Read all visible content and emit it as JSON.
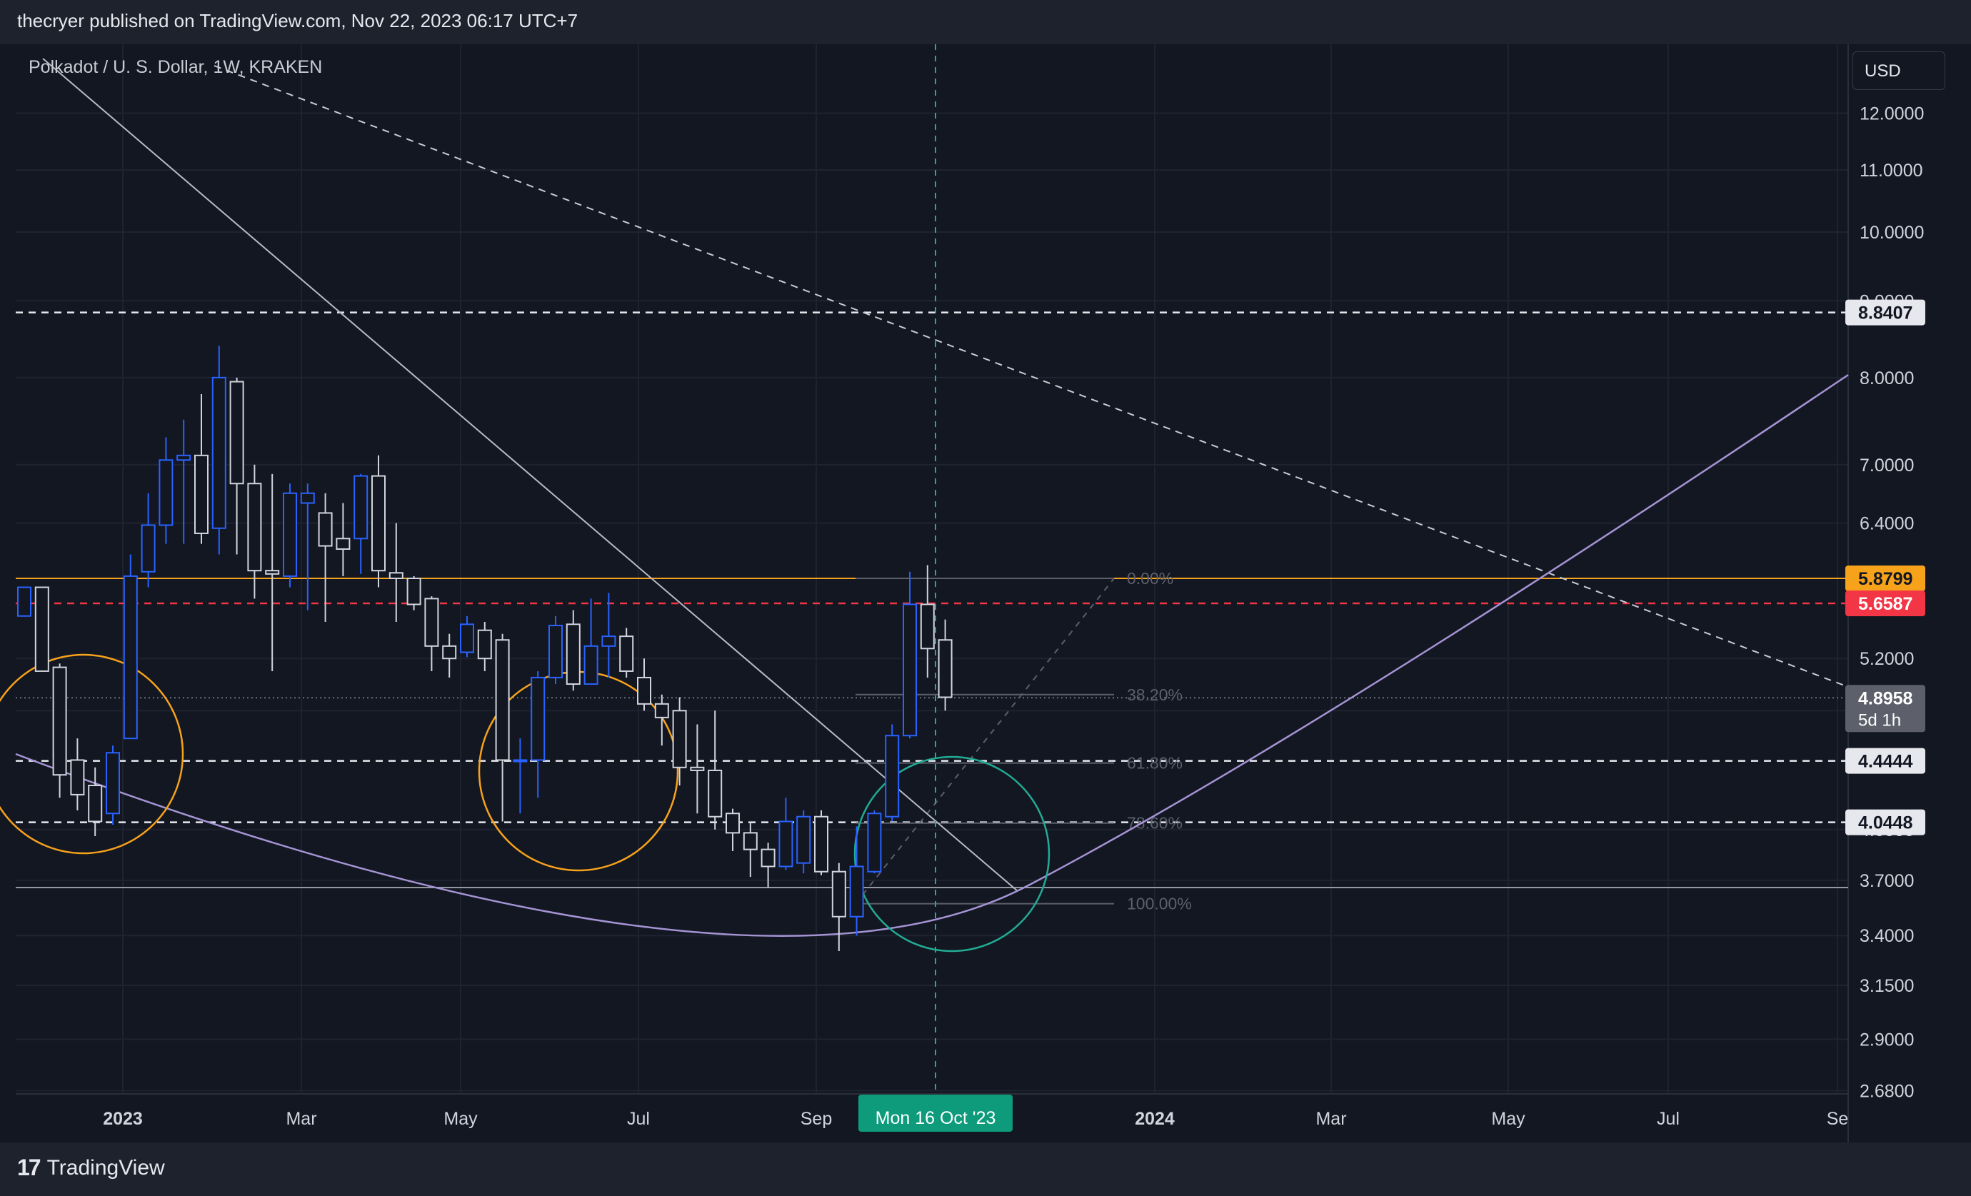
{
  "header": {
    "text": "thecryer published on TradingView.com, Nov 22, 2023 06:17 UTC+7"
  },
  "symbol": {
    "title": "Polkadot / U. S. Dollar, 1W, KRAKEN"
  },
  "currency": "USD",
  "footer": {
    "brand": "TradingView",
    "logo": "17"
  },
  "colors": {
    "background": "#131722",
    "up": "#2962ff",
    "down": "#d1d4dc",
    "orange": "#f7a21b",
    "red": "#f23645",
    "teal": "#22ab94",
    "purple": "#a594d4"
  },
  "chart_data": {
    "type": "candlestick",
    "scale": "log",
    "ylim": [
      2.68,
      12.9
    ],
    "y_ticks": [
      "12.0000",
      "11.0000",
      "10.0000",
      "9.0000",
      "8.0000",
      "7.0000",
      "6.4000",
      "5.2000",
      "4.8000",
      "4.0000",
      "3.7000",
      "3.4000",
      "3.1500",
      "2.9000",
      "2.6800"
    ],
    "x_ticks": [
      "2023",
      "Mar",
      "May",
      "Jul",
      "Sep",
      "2024",
      "Mar",
      "May",
      "Jul",
      "Se"
    ],
    "crosshair_date": "Mon 16 Oct '23",
    "price_labels": [
      {
        "value": "8.8407",
        "kind": "level"
      },
      {
        "value": "5.8799",
        "kind": "orange"
      },
      {
        "value": "5.6587",
        "kind": "red"
      },
      {
        "value": "4.8958",
        "kind": "last",
        "countdown": "5d 1h"
      },
      {
        "value": "4.4444",
        "kind": "level"
      },
      {
        "value": "4.0448",
        "kind": "level"
      }
    ],
    "fib_levels": [
      {
        "label": "0.00%",
        "price": 5.88
      },
      {
        "label": "38.20%",
        "price": 4.92
      },
      {
        "label": "61.80%",
        "price": 4.43
      },
      {
        "label": "78.60%",
        "price": 4.04
      },
      {
        "label": "100.00%",
        "price": 3.57
      }
    ],
    "candles": [
      [
        5.55,
        5.8,
        5.7,
        5.55
      ],
      [
        5.8,
        5.1,
        5.8,
        5.2
      ],
      [
        5.13,
        4.35,
        5.16,
        4.2
      ],
      [
        4.45,
        4.22,
        4.6,
        4.12
      ],
      [
        4.28,
        4.05,
        4.4,
        3.96
      ],
      [
        4.1,
        4.5,
        4.55,
        4.03
      ],
      [
        4.6,
        5.9,
        6.1,
        4.6
      ],
      [
        5.94,
        6.38,
        6.7,
        5.8
      ],
      [
        6.38,
        7.05,
        7.3,
        6.2
      ],
      [
        7.05,
        7.1,
        7.5,
        6.2
      ],
      [
        7.1,
        6.3,
        7.8,
        6.2
      ],
      [
        6.35,
        8.0,
        8.4,
        6.1
      ],
      [
        7.95,
        6.8,
        8.0,
        6.1
      ],
      [
        6.8,
        5.95,
        7.0,
        5.7
      ],
      [
        5.95,
        5.92,
        6.9,
        5.1
      ],
      [
        5.9,
        6.7,
        6.8,
        5.8
      ],
      [
        6.6,
        6.7,
        6.8,
        5.6
      ],
      [
        6.5,
        6.18,
        6.7,
        5.5
      ],
      [
        6.25,
        6.15,
        6.6,
        5.9
      ],
      [
        6.25,
        6.88,
        6.9,
        5.92
      ],
      [
        6.88,
        5.95,
        7.1,
        5.8
      ],
      [
        5.93,
        5.88,
        6.4,
        5.5
      ],
      [
        5.88,
        5.65,
        5.9,
        5.6
      ],
      [
        5.7,
        5.3,
        5.72,
        5.1
      ],
      [
        5.3,
        5.2,
        5.4,
        5.05
      ],
      [
        5.25,
        5.48,
        5.55,
        5.21
      ],
      [
        5.43,
        5.2,
        5.5,
        5.1
      ],
      [
        5.35,
        4.45,
        5.4,
        4.05
      ],
      [
        4.45,
        4.45,
        4.6,
        4.1
      ],
      [
        4.45,
        5.05,
        5.1,
        4.2
      ],
      [
        5.05,
        5.47,
        5.55,
        5.0
      ],
      [
        5.48,
        5.0,
        5.6,
        4.95
      ],
      [
        5.0,
        5.3,
        5.7,
        5.0
      ],
      [
        5.3,
        5.38,
        5.75,
        5.05
      ],
      [
        5.38,
        5.1,
        5.45,
        5.05
      ],
      [
        5.05,
        4.85,
        5.2,
        4.8
      ],
      [
        4.85,
        4.75,
        4.92,
        4.55
      ],
      [
        4.8,
        4.4,
        4.9,
        4.28
      ],
      [
        4.4,
        4.38,
        4.7,
        4.1
      ],
      [
        4.38,
        4.08,
        4.8,
        4.0
      ],
      [
        4.1,
        3.98,
        4.13,
        3.87
      ],
      [
        3.98,
        3.88,
        4.05,
        3.72
      ],
      [
        3.88,
        3.78,
        3.92,
        3.66
      ],
      [
        3.78,
        4.05,
        4.2,
        3.76
      ],
      [
        3.8,
        4.08,
        4.12,
        3.74
      ],
      [
        4.08,
        3.75,
        4.12,
        3.73
      ],
      [
        3.75,
        3.5,
        3.8,
        3.32
      ],
      [
        3.5,
        3.78,
        4.02,
        3.4
      ],
      [
        3.75,
        4.1,
        4.12,
        3.74
      ],
      [
        4.08,
        4.62,
        4.7,
        4.05
      ],
      [
        4.62,
        5.65,
        5.94,
        4.6
      ],
      [
        5.65,
        5.28,
        6.0,
        5.05
      ],
      [
        5.35,
        4.9,
        5.52,
        4.8
      ]
    ]
  }
}
